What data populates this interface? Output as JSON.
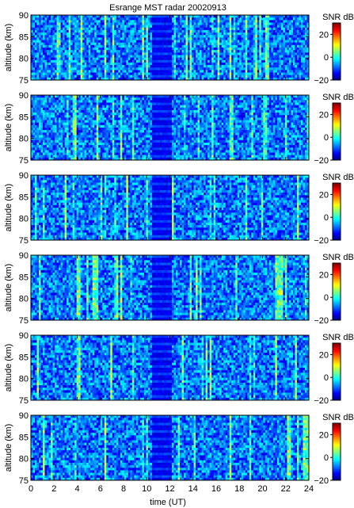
{
  "chart_data": {
    "type": "heatmap",
    "title": "Esrange MST radar 20020913",
    "xlabel": "time (UT)",
    "ylabel": "altitude (km)",
    "xlim": [
      0,
      24
    ],
    "ylim": [
      75,
      90
    ],
    "x_ticks": [
      0,
      2,
      4,
      6,
      8,
      10,
      12,
      14,
      16,
      18,
      20,
      22,
      24
    ],
    "x_tick_labels": [
      "0",
      "2",
      "4",
      "6",
      "8",
      "10",
      "12",
      "14",
      "16",
      "18",
      "20",
      "22",
      "24"
    ],
    "y_ticks": [
      75,
      80,
      85,
      90
    ],
    "y_tick_labels": [
      "75",
      "80",
      "85",
      "90"
    ],
    "colorbar": {
      "label": "SNR dB",
      "range": [
        -20,
        30
      ],
      "ticks": [
        -20,
        0,
        20
      ],
      "tick_labels": [
        "−20",
        "0",
        "20"
      ],
      "colormap": "jet"
    },
    "panel_count": 6,
    "noise_level_db": -8,
    "notes": [
      "Noise-dominated background in all panels",
      "Gap / distinct band near 10.5–12 UT"
    ]
  },
  "colors": {
    "background": "#ffffff",
    "axes": "#000000"
  }
}
